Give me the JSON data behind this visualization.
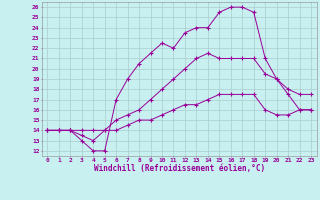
{
  "xlabel": "Windchill (Refroidissement éolien,°C)",
  "bg_color": "#c8f0f0",
  "line_color": "#990099",
  "grid_color": "#aacccc",
  "xlim": [
    -0.5,
    23.5
  ],
  "ylim": [
    11.5,
    26.5
  ],
  "xticks": [
    0,
    1,
    2,
    3,
    4,
    5,
    6,
    7,
    8,
    9,
    10,
    11,
    12,
    13,
    14,
    15,
    16,
    17,
    18,
    19,
    20,
    21,
    22,
    23
  ],
  "yticks": [
    12,
    13,
    14,
    15,
    16,
    17,
    18,
    19,
    20,
    21,
    22,
    23,
    24,
    25,
    26
  ],
  "lines": [
    {
      "x": [
        0,
        1,
        2,
        3,
        4,
        5,
        6,
        7,
        8,
        9,
        10,
        11,
        12,
        13,
        14,
        15,
        16,
        17,
        18,
        19,
        20,
        21,
        22,
        23
      ],
      "y": [
        14,
        14,
        14,
        13,
        12,
        12,
        17,
        19,
        20.5,
        21.5,
        22.5,
        22,
        23.5,
        24,
        24,
        25.5,
        26,
        26,
        25.5,
        21,
        19,
        17.5,
        16,
        16
      ]
    },
    {
      "x": [
        0,
        1,
        2,
        3,
        4,
        5,
        6,
        7,
        8,
        9,
        10,
        11,
        12,
        13,
        14,
        15,
        16,
        17,
        18,
        19,
        20,
        21,
        22,
        23
      ],
      "y": [
        14,
        14,
        14,
        13.5,
        13,
        14,
        15,
        15.5,
        16,
        17,
        18,
        19,
        20,
        21,
        21.5,
        21,
        21,
        21,
        21,
        19.5,
        19,
        18,
        17.5,
        17.5
      ]
    },
    {
      "x": [
        0,
        1,
        2,
        3,
        4,
        5,
        6,
        7,
        8,
        9,
        10,
        11,
        12,
        13,
        14,
        15,
        16,
        17,
        18,
        19,
        20,
        21,
        22,
        23
      ],
      "y": [
        14,
        14,
        14,
        14,
        14,
        14,
        14,
        14.5,
        15,
        15,
        15.5,
        16,
        16.5,
        16.5,
        17,
        17.5,
        17.5,
        17.5,
        17.5,
        16,
        15.5,
        15.5,
        16,
        16
      ]
    }
  ]
}
